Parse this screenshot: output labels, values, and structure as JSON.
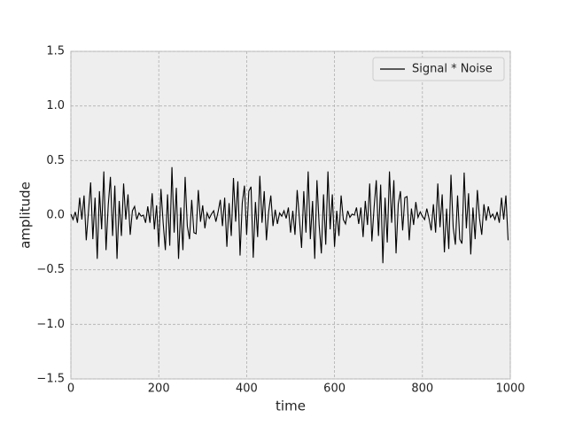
{
  "chart_data": {
    "type": "line",
    "xlabel": "time",
    "ylabel": "amplitude",
    "x": [
      0,
      5,
      10,
      15,
      20,
      25,
      30,
      35,
      40,
      45,
      50,
      55,
      60,
      65,
      70,
      75,
      80,
      85,
      90,
      95,
      100,
      105,
      110,
      115,
      120,
      125,
      130,
      135,
      140,
      145,
      150,
      155,
      160,
      165,
      170,
      175,
      180,
      185,
      190,
      195,
      200,
      205,
      210,
      215,
      220,
      225,
      230,
      235,
      240,
      245,
      250,
      255,
      260,
      265,
      270,
      275,
      280,
      285,
      290,
      295,
      300,
      305,
      310,
      315,
      320,
      325,
      330,
      335,
      340,
      345,
      350,
      355,
      360,
      365,
      370,
      375,
      380,
      385,
      390,
      395,
      400,
      405,
      410,
      415,
      420,
      425,
      430,
      435,
      440,
      445,
      450,
      455,
      460,
      465,
      470,
      475,
      480,
      485,
      490,
      495,
      500,
      505,
      510,
      515,
      520,
      525,
      530,
      535,
      540,
      545,
      550,
      555,
      560,
      565,
      570,
      575,
      580,
      585,
      590,
      595,
      600,
      605,
      610,
      615,
      620,
      625,
      630,
      635,
      640,
      645,
      650,
      655,
      660,
      665,
      670,
      675,
      680,
      685,
      690,
      695,
      700,
      705,
      710,
      715,
      720,
      725,
      730,
      735,
      740,
      745,
      750,
      755,
      760,
      765,
      770,
      775,
      780,
      785,
      790,
      795,
      800,
      805,
      810,
      815,
      820,
      825,
      830,
      835,
      840,
      845,
      850,
      855,
      860,
      865,
      870,
      875,
      880,
      885,
      890,
      895,
      900,
      905,
      910,
      915,
      920,
      925,
      930,
      935,
      940,
      945,
      950,
      955,
      960,
      965,
      970,
      975,
      980,
      985,
      990,
      995
    ],
    "series": [
      {
        "name": "Signal * Noise",
        "color": "#000000",
        "values": [
          0.01,
          -0.04,
          0.03,
          -0.07,
          0.16,
          -0.04,
          0.18,
          -0.23,
          0.03,
          0.3,
          -0.22,
          0.16,
          -0.4,
          0.22,
          -0.13,
          0.4,
          -0.32,
          0.09,
          0.35,
          -0.19,
          0.27,
          -0.4,
          0.13,
          -0.19,
          0.29,
          -0.04,
          0.19,
          -0.18,
          0.04,
          0.08,
          -0.04,
          0.02,
          -0.01,
          0.0,
          -0.07,
          0.08,
          -0.07,
          0.2,
          -0.13,
          0.09,
          -0.29,
          0.24,
          -0.07,
          -0.32,
          0.19,
          -0.28,
          0.44,
          -0.16,
          0.25,
          -0.4,
          0.07,
          -0.32,
          0.35,
          -0.1,
          -0.22,
          0.14,
          -0.16,
          -0.17,
          0.23,
          -0.06,
          0.09,
          -0.12,
          0.02,
          -0.03,
          0.01,
          0.04,
          -0.06,
          0.03,
          0.14,
          -0.1,
          0.16,
          -0.29,
          0.11,
          -0.19,
          0.34,
          -0.06,
          0.31,
          -0.37,
          0.11,
          0.27,
          -0.18,
          0.22,
          0.26,
          -0.39,
          0.12,
          -0.2,
          0.36,
          -0.07,
          0.22,
          -0.23,
          0.03,
          0.18,
          -0.1,
          0.05,
          -0.08,
          0.02,
          -0.01,
          0.04,
          -0.03,
          0.07,
          -0.16,
          0.04,
          -0.18,
          0.23,
          -0.03,
          -0.3,
          0.22,
          -0.16,
          0.4,
          -0.22,
          0.13,
          -0.4,
          0.32,
          -0.09,
          -0.35,
          0.19,
          -0.27,
          0.4,
          -0.13,
          0.19,
          -0.29,
          0.04,
          -0.19,
          0.18,
          -0.04,
          -0.08,
          0.04,
          -0.02,
          0.01,
          0,
          0.07,
          -0.08,
          0.07,
          -0.2,
          0.13,
          -0.09,
          0.29,
          -0.24,
          0.07,
          0.32,
          -0.19,
          0.28,
          -0.44,
          0.16,
          -0.25,
          0.4,
          -0.07,
          0.32,
          -0.35,
          0.1,
          0.22,
          -0.14,
          0.16,
          0.17,
          -0.23,
          0.06,
          -0.09,
          0.12,
          -0.02,
          0.03,
          -0.01,
          -0.04,
          0.06,
          -0.03,
          -0.14,
          0.1,
          -0.16,
          0.29,
          -0.11,
          0.19,
          -0.34,
          0.06,
          -0.31,
          0.37,
          -0.11,
          -0.27,
          0.18,
          -0.22,
          -0.26,
          0.39,
          -0.12,
          0.2,
          -0.36,
          0.07,
          -0.22,
          0.23,
          -0.03,
          -0.18,
          0.1,
          -0.05,
          0.08,
          -0.02,
          0.01,
          -0.04,
          0.03,
          -0.07,
          0.16,
          -0.04,
          0.18,
          -0.23
        ]
      }
    ],
    "xlim": [
      0,
      1000
    ],
    "xticks": [
      0,
      200,
      400,
      600,
      800,
      1000
    ],
    "ylim": [
      -1.5,
      1.5
    ],
    "yticks": [
      {
        "value": -1.5,
        "label": "−1.5"
      },
      {
        "value": -1.0,
        "label": "−1.0"
      },
      {
        "value": -0.5,
        "label": "−0.5"
      },
      {
        "value": 0,
        "label": "0.0"
      },
      0.5,
      {
        "value": 1.0,
        "label": "1.0"
      },
      1.5
    ],
    "grid": true,
    "legend": "upper right"
  }
}
